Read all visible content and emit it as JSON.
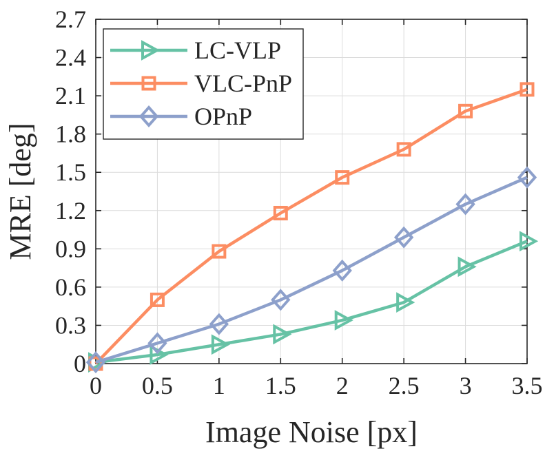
{
  "chart_data": {
    "type": "line",
    "xlabel": "Image Noise [px]",
    "ylabel": "MRE [deg]",
    "x": [
      0,
      0.5,
      1,
      1.5,
      2,
      2.5,
      3,
      3.5
    ],
    "xlim": [
      0,
      3.5
    ],
    "ylim": [
      0,
      2.7
    ],
    "xticks": [
      "0",
      "0.5",
      "1",
      "1.5",
      "2",
      "2.5",
      "3",
      "3.5"
    ],
    "yticks": [
      "0",
      "0.3",
      "0.6",
      "0.9",
      "1.2",
      "1.5",
      "1.8",
      "2.1",
      "2.4",
      "2.7"
    ],
    "grid": true,
    "legend_position": "top-left",
    "series": [
      {
        "name": "LC-VLP",
        "marker": "triangle-right",
        "color": "#66c2a5",
        "values": [
          0.01,
          0.07,
          0.15,
          0.23,
          0.34,
          0.48,
          0.76,
          0.96
        ]
      },
      {
        "name": "VLC-PnP",
        "marker": "square",
        "color": "#fc8d62",
        "values": [
          0.0,
          0.5,
          0.88,
          1.18,
          1.46,
          1.68,
          1.98,
          2.15
        ]
      },
      {
        "name": "OPnP",
        "marker": "diamond",
        "color": "#8da0cb",
        "values": [
          0.01,
          0.16,
          0.31,
          0.5,
          0.73,
          0.99,
          1.25,
          1.46
        ]
      }
    ]
  }
}
